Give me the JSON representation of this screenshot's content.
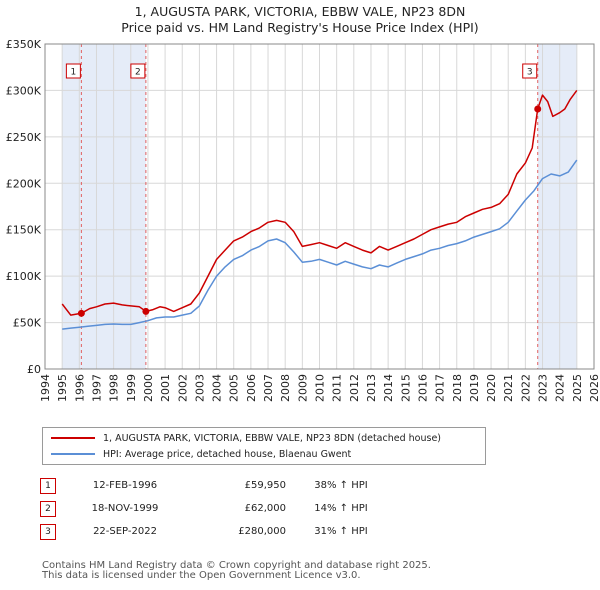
{
  "chart_data": {
    "type": "line",
    "title": "1, AUGUSTA PARK, VICTORIA, EBBW VALE, NP23 8DN",
    "subtitle": "Price paid vs. HM Land Registry's House Price Index (HPI)",
    "xlabel": "",
    "ylabel": "",
    "xlim": [
      1994,
      2026
    ],
    "ylim": [
      0,
      350000
    ],
    "y_ticks": [
      {
        "value": 0,
        "label": "£0"
      },
      {
        "value": 50000,
        "label": "£50K"
      },
      {
        "value": 100000,
        "label": "£100K"
      },
      {
        "value": 150000,
        "label": "£150K"
      },
      {
        "value": 200000,
        "label": "£200K"
      },
      {
        "value": 250000,
        "label": "£250K"
      },
      {
        "value": 300000,
        "label": "£300K"
      },
      {
        "value": 350000,
        "label": "£350K"
      }
    ],
    "x_ticks": [
      "1994",
      "1995",
      "1996",
      "1997",
      "1998",
      "1999",
      "2000",
      "2001",
      "2002",
      "2003",
      "2004",
      "2005",
      "2006",
      "2007",
      "2008",
      "2009",
      "2010",
      "2011",
      "2012",
      "2013",
      "2014",
      "2015",
      "2016",
      "2017",
      "2018",
      "2019",
      "2020",
      "2021",
      "2022",
      "2023",
      "2024",
      "2025",
      "2026"
    ],
    "shaded_ranges": [
      [
        1995.0,
        1996.12
      ],
      [
        1996.12,
        1999.88
      ],
      [
        2022.72,
        2025.0
      ]
    ],
    "grid": true,
    "series": [
      {
        "name": "1, AUGUSTA PARK, VICTORIA, EBBW VALE, NP23 8DN (detached house)",
        "color": "#cc0000",
        "x": [
          1995.0,
          1995.5,
          1996.12,
          1996.6,
          1997.0,
          1997.5,
          1998.0,
          1998.5,
          1999.0,
          1999.5,
          1999.88,
          2000.3,
          2000.7,
          2001.0,
          2001.5,
          2002.0,
          2002.5,
          2003.0,
          2003.5,
          2004.0,
          2004.5,
          2005.0,
          2005.5,
          2006.0,
          2006.5,
          2007.0,
          2007.5,
          2008.0,
          2008.5,
          2009.0,
          2009.5,
          2010.0,
          2010.5,
          2011.0,
          2011.5,
          2012.0,
          2012.5,
          2013.0,
          2013.5,
          2014.0,
          2014.5,
          2015.0,
          2015.5,
          2016.0,
          2016.5,
          2017.0,
          2017.5,
          2018.0,
          2018.5,
          2019.0,
          2019.5,
          2020.0,
          2020.5,
          2021.0,
          2021.5,
          2022.0,
          2022.4,
          2022.72,
          2023.0,
          2023.3,
          2023.6,
          2024.0,
          2024.3,
          2024.6,
          2025.0
        ],
        "values": [
          70000,
          58000,
          59950,
          65000,
          67000,
          70000,
          71000,
          69000,
          68000,
          67000,
          62000,
          64000,
          67000,
          66000,
          62000,
          66000,
          70000,
          82000,
          100000,
          118000,
          128000,
          138000,
          142000,
          148000,
          152000,
          158000,
          160000,
          158000,
          148000,
          132000,
          134000,
          136000,
          133000,
          130000,
          136000,
          132000,
          128000,
          125000,
          132000,
          128000,
          132000,
          136000,
          140000,
          145000,
          150000,
          153000,
          156000,
          158000,
          164000,
          168000,
          172000,
          174000,
          178000,
          188000,
          210000,
          222000,
          238000,
          280000,
          295000,
          288000,
          272000,
          276000,
          280000,
          290000,
          300000
        ]
      },
      {
        "name": "HPI: Average price, detached house, Blaenau Gwent",
        "color": "#5b8fd6",
        "x": [
          1995.0,
          1995.5,
          1996.0,
          1996.5,
          1997.0,
          1997.5,
          1998.0,
          1998.5,
          1999.0,
          1999.5,
          2000.0,
          2000.5,
          2001.0,
          2001.5,
          2002.0,
          2002.5,
          2003.0,
          2003.5,
          2004.0,
          2004.5,
          2005.0,
          2005.5,
          2006.0,
          2006.5,
          2007.0,
          2007.5,
          2008.0,
          2008.5,
          2009.0,
          2009.5,
          2010.0,
          2010.5,
          2011.0,
          2011.5,
          2012.0,
          2012.5,
          2013.0,
          2013.5,
          2014.0,
          2014.5,
          2015.0,
          2015.5,
          2016.0,
          2016.5,
          2017.0,
          2017.5,
          2018.0,
          2018.5,
          2019.0,
          2019.5,
          2020.0,
          2020.5,
          2021.0,
          2021.5,
          2022.0,
          2022.5,
          2023.0,
          2023.5,
          2024.0,
          2024.5,
          2025.0
        ],
        "values": [
          43000,
          44000,
          45000,
          46000,
          47000,
          48000,
          48500,
          48000,
          48000,
          50000,
          52000,
          55000,
          56000,
          56000,
          58000,
          60000,
          68000,
          85000,
          100000,
          110000,
          118000,
          122000,
          128000,
          132000,
          138000,
          140000,
          136000,
          126000,
          115000,
          116000,
          118000,
          115000,
          112000,
          116000,
          113000,
          110000,
          108000,
          112000,
          110000,
          114000,
          118000,
          121000,
          124000,
          128000,
          130000,
          133000,
          135000,
          138000,
          142000,
          145000,
          148000,
          151000,
          158000,
          170000,
          182000,
          192000,
          205000,
          210000,
          208000,
          212000,
          225000
        ]
      }
    ],
    "sales": [
      {
        "id": "1",
        "x": 1996.12,
        "value": 59950
      },
      {
        "id": "2",
        "x": 1999.88,
        "value": 62000
      },
      {
        "id": "3",
        "x": 2022.72,
        "value": 280000
      }
    ]
  },
  "legend": {
    "property_label": "1, AUGUSTA PARK, VICTORIA, EBBW VALE, NP23 8DN (detached house)",
    "hpi_label": "HPI: Average price, detached house, Blaenau Gwent",
    "property_color": "#cc0000",
    "hpi_color": "#5b8fd6"
  },
  "transactions": [
    {
      "num": "1",
      "date": "12-FEB-1996",
      "price": "£59,950",
      "hpi": "38% ↑ HPI"
    },
    {
      "num": "2",
      "date": "18-NOV-1999",
      "price": "£62,000",
      "hpi": "14% ↑ HPI"
    },
    {
      "num": "3",
      "date": "22-SEP-2022",
      "price": "£280,000",
      "hpi": "31% ↑ HPI"
    }
  ],
  "footer": {
    "line1": "Contains HM Land Registry data © Crown copyright and database right 2025.",
    "line2": "This data is licensed under the Open Government Licence v3.0."
  }
}
